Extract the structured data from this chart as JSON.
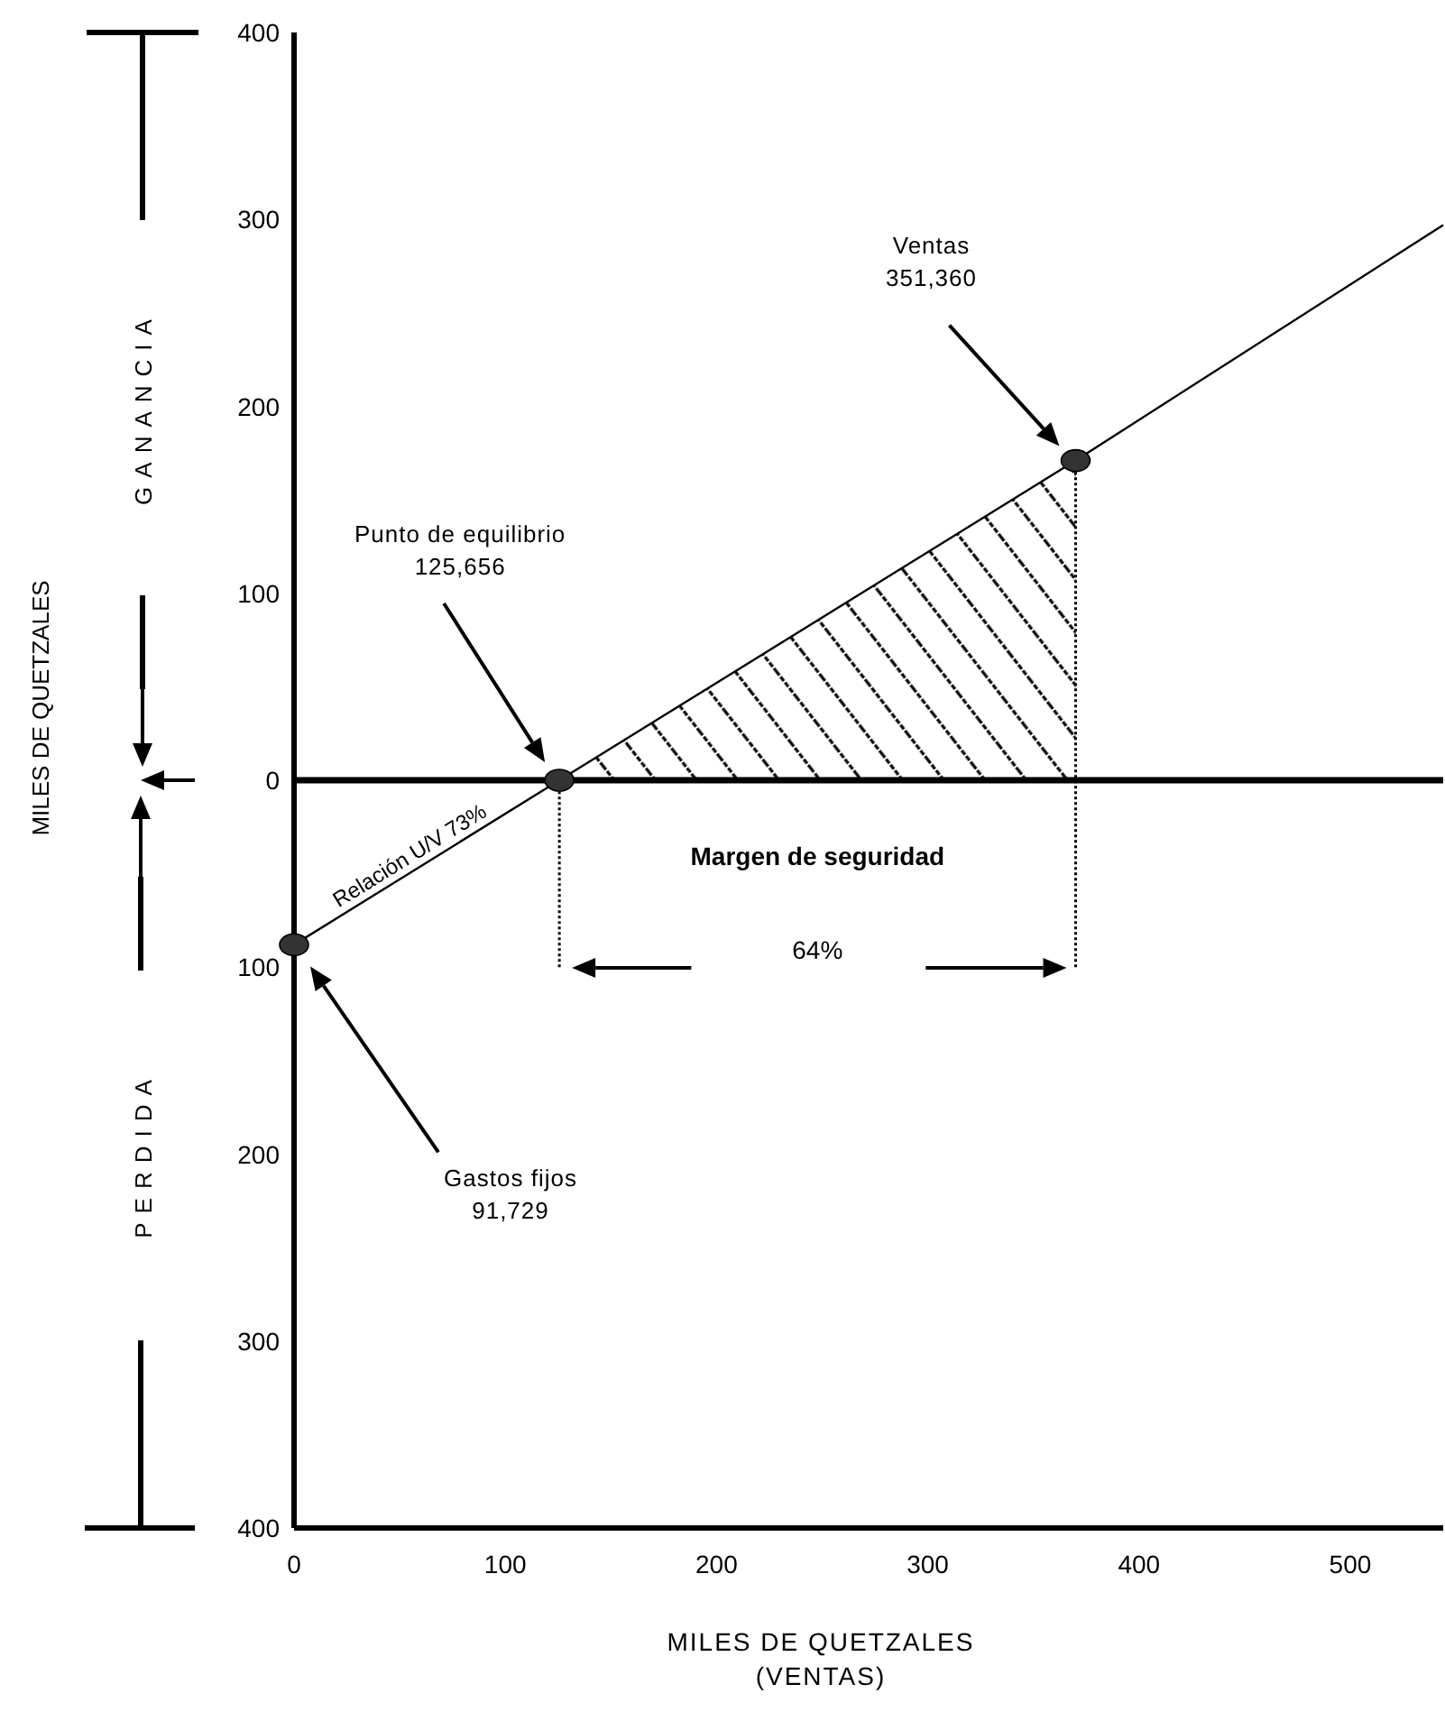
{
  "chart_data": {
    "type": "line",
    "xlabel": "MILES DE QUETZALES\n(VENTAS)",
    "xlim": [
      0,
      544
    ],
    "xticks": [
      0,
      100,
      200,
      300,
      400,
      500
    ],
    "ylim": [
      -400,
      400
    ],
    "yticks": [
      {
        "value": -400,
        "label": "400"
      },
      {
        "value": -300,
        "label": "300"
      },
      {
        "value": -200,
        "label": "200"
      },
      {
        "value": -100,
        "label": "100"
      },
      0,
      100,
      200,
      300,
      400
    ],
    "series": [
      {
        "type": "area",
        "color": "#000000",
        "x": [
          125.6,
          370
        ],
        "values": [
          0,
          171
        ]
      },
      {
        "color": "#000000",
        "x": [
          0,
          125.6,
          370,
          544
        ],
        "values": [
          -88,
          0,
          171,
          297
        ]
      },
      {
        "color": "#000000",
        "line_style": "dotted",
        "x": [
          125.6,
          125.6
        ],
        "values": [
          -100,
          0
        ]
      },
      {
        "color": "#000000",
        "line_style": "dotted",
        "x": [
          370,
          370
        ],
        "values": [
          -100,
          171
        ]
      },
      {
        "type": "scatter",
        "color": "#333333",
        "marker": "circle",
        "x": [
          0,
          125.6,
          370
        ],
        "values": [
          -88,
          0,
          171
        ]
      }
    ],
    "ref_lines": [
      {
        "axis": "y",
        "value": 0,
        "color": "#000000"
      }
    ],
    "annotations": [
      "Ventas\n351,360",
      "Punto de equilibrio\n125,656",
      "Gastos fijos\n91,729",
      "Relación U/V 73%",
      "Margen de seguridad",
      "64%",
      "GANANCIA",
      "PERDIDA",
      "MILES DE QUETZALES"
    ]
  }
}
